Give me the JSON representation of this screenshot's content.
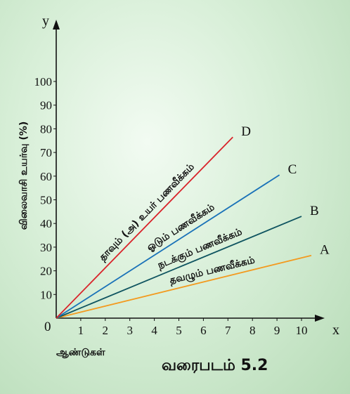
{
  "chart_data": {
    "type": "line",
    "xlabel": "ஆண்டுகள்",
    "ylabel": "விலைவாசி உயர்வு (%)",
    "x_axis_letter": "x",
    "y_axis_letter": "y",
    "origin_label": "0",
    "xlim": [
      0,
      11
    ],
    "ylim": [
      0,
      105
    ],
    "x_ticks": [
      "1",
      "2",
      "3",
      "4",
      "5",
      "6",
      "7",
      "8",
      "9",
      "10"
    ],
    "y_ticks": [
      "10",
      "20",
      "30",
      "40",
      "50",
      "60",
      "70",
      "80",
      "90",
      "100"
    ],
    "grid": false,
    "series": [
      {
        "name": "தவழும் பணவீக்கம்",
        "letter": "A",
        "color": "#f39a1f",
        "x": [
          0,
          10.4
        ],
        "y": [
          0,
          26.5
        ]
      },
      {
        "name": "நடக்கும் பணவீக்கம்",
        "letter": "B",
        "color": "#0f5460",
        "x": [
          0,
          10
        ],
        "y": [
          0,
          43
        ]
      },
      {
        "name": "ஓடும் பணவீக்கம்",
        "letter": "C",
        "color": "#1a72b8",
        "x": [
          0,
          9.1
        ],
        "y": [
          0,
          60.5
        ]
      },
      {
        "name": "தாவும் (அ) உயர் பணவீக்கம்",
        "letter": "D",
        "color": "#d9232a",
        "x": [
          0,
          7.2
        ],
        "y": [
          0,
          76.5
        ]
      }
    ]
  },
  "caption": "வரைபடம் 5.2"
}
